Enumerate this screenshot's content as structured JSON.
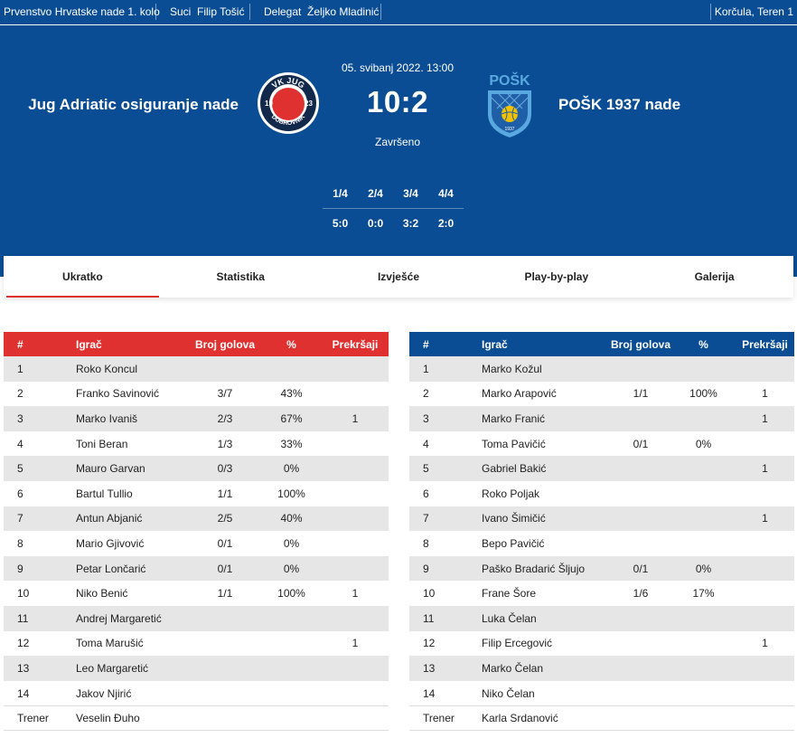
{
  "topbar": {
    "competition": "Prvenstvo Hrvatske nade  1. kolo",
    "referees_label": "Suci",
    "referees": "Filip Tošić",
    "delegate_label": "Delegat",
    "delegate": "Željko Mladinić",
    "location": "Korčula, Teren 1"
  },
  "match": {
    "home_team": "Jug Adriatic osiguranje nade",
    "away_team": "POŠK 1937 nade",
    "date": "05. svibanj 2022. 13:00",
    "score": "10:2",
    "status": "Završeno",
    "quarters": [
      {
        "label": "1/4",
        "score": "5:0"
      },
      {
        "label": "2/4",
        "score": "0:0"
      },
      {
        "label": "3/4",
        "score": "3:2"
      },
      {
        "label": "4/4",
        "score": "2:0"
      }
    ],
    "home_logo": {
      "top_text": "VK JUG",
      "left_num": "19",
      "right_num": "23",
      "bottom_text": "DUBROVNIK"
    },
    "away_logo": {
      "text": "POŠK",
      "year": "1937"
    }
  },
  "tabs": [
    "Ukratko",
    "Statistika",
    "Izvješće",
    "Play-by-play",
    "Galerija"
  ],
  "columns": {
    "num": "#",
    "player": "Igrač",
    "goals": "Broj golova",
    "pct": "%",
    "exclusions": "Prekršaji"
  },
  "home_roster": {
    "players": [
      {
        "num": "1",
        "name": "Roko Koncul",
        "goals": "",
        "pct": "",
        "ex": ""
      },
      {
        "num": "2",
        "name": "Franko Savinović",
        "goals": "3/7",
        "pct": "43%",
        "ex": ""
      },
      {
        "num": "3",
        "name": "Marko Ivaniš",
        "goals": "2/3",
        "pct": "67%",
        "ex": "1"
      },
      {
        "num": "4",
        "name": "Toni Beran",
        "goals": "1/3",
        "pct": "33%",
        "ex": ""
      },
      {
        "num": "5",
        "name": "Mauro Garvan",
        "goals": "0/3",
        "pct": "0%",
        "ex": ""
      },
      {
        "num": "6",
        "name": "Bartul Tullio",
        "goals": "1/1",
        "pct": "100%",
        "ex": ""
      },
      {
        "num": "7",
        "name": "Antun Abjanić",
        "goals": "2/5",
        "pct": "40%",
        "ex": ""
      },
      {
        "num": "8",
        "name": "Mario Gjivović",
        "goals": "0/1",
        "pct": "0%",
        "ex": ""
      },
      {
        "num": "9",
        "name": "Petar Lončarić",
        "goals": "0/1",
        "pct": "0%",
        "ex": ""
      },
      {
        "num": "10",
        "name": "Niko Benić",
        "goals": "1/1",
        "pct": "100%",
        "ex": "1"
      },
      {
        "num": "11",
        "name": "Andrej Margaretić",
        "goals": "",
        "pct": "",
        "ex": ""
      },
      {
        "num": "12",
        "name": "Toma Marušić",
        "goals": "",
        "pct": "",
        "ex": "1"
      },
      {
        "num": "13",
        "name": "Leo Margaretić",
        "goals": "",
        "pct": "",
        "ex": ""
      },
      {
        "num": "14",
        "name": "Jakov Njirić",
        "goals": "",
        "pct": "",
        "ex": ""
      }
    ],
    "coach_label": "Trener",
    "coach": "Veselin Đuho"
  },
  "away_roster": {
    "players": [
      {
        "num": "1",
        "name": "Marko Kožul",
        "goals": "",
        "pct": "",
        "ex": ""
      },
      {
        "num": "2",
        "name": "Marko Arapović",
        "goals": "1/1",
        "pct": "100%",
        "ex": "1"
      },
      {
        "num": "3",
        "name": "Marko Franić",
        "goals": "",
        "pct": "",
        "ex": "1"
      },
      {
        "num": "4",
        "name": "Toma Pavičić",
        "goals": "0/1",
        "pct": "0%",
        "ex": ""
      },
      {
        "num": "5",
        "name": "Gabriel Bakić",
        "goals": "",
        "pct": "",
        "ex": "1"
      },
      {
        "num": "6",
        "name": "Roko Poljak",
        "goals": "",
        "pct": "",
        "ex": ""
      },
      {
        "num": "7",
        "name": "Ivano Šimičić",
        "goals": "",
        "pct": "",
        "ex": "1"
      },
      {
        "num": "8",
        "name": "Bepo Pavičić",
        "goals": "",
        "pct": "",
        "ex": ""
      },
      {
        "num": "9",
        "name": "Paško Bradarić Šljujo",
        "goals": "0/1",
        "pct": "0%",
        "ex": ""
      },
      {
        "num": "10",
        "name": "Frane Šore",
        "goals": "1/6",
        "pct": "17%",
        "ex": ""
      },
      {
        "num": "11",
        "name": "Luka Čelan",
        "goals": "",
        "pct": "",
        "ex": ""
      },
      {
        "num": "12",
        "name": "Filip Ercegović",
        "goals": "",
        "pct": "",
        "ex": "1"
      },
      {
        "num": "13",
        "name": "Marko Čelan",
        "goals": "",
        "pct": "",
        "ex": ""
      },
      {
        "num": "14",
        "name": "Niko Čelan",
        "goals": "",
        "pct": "",
        "ex": ""
      }
    ],
    "coach_label": "Trener",
    "coach": "Karla Srdanović"
  },
  "colors": {
    "primary_blue": "#0b4d94",
    "home_red": "#e03131",
    "row_stripe": "#e6e6e6"
  }
}
